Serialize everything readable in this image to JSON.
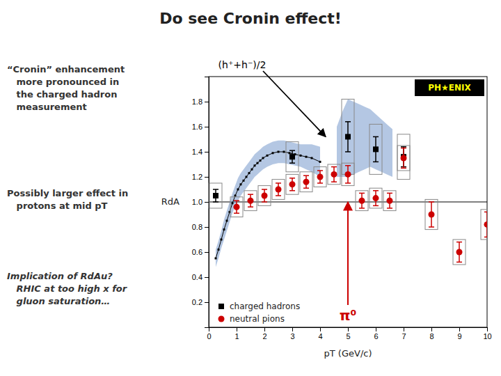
{
  "chart_data": {
    "type": "scatter",
    "title": "Do see Cronin effect!",
    "xlabel": "pT (GeV/c)",
    "ylabel": "RdA",
    "xlim": [
      0,
      10
    ],
    "ylim": [
      0,
      2.0
    ],
    "xticks": [
      0,
      1,
      2,
      3,
      4,
      5,
      6,
      7,
      8,
      9,
      10
    ],
    "yticks": [
      0.2,
      0.4,
      0.6,
      0.8,
      {
        "value": 1.0,
        "label": "1.0"
      },
      1.2,
      1.4,
      1.6,
      1.8
    ],
    "legend": "lower left",
    "reference_line": 1.0,
    "logo": "PH★ENIX",
    "notes": [
      "“Cronin” enhancement\n   more pronounced in\n   the charged hadron\n   measurement",
      "Possibly larger effect in\n   protons at mid pT",
      "Implication of RdAu?\n   RHIC at too high x for\n   gluon saturation…"
    ],
    "annotations": [
      {
        "text": "(h⁺+h⁻)/2",
        "x": 4.2,
        "y": 1.52,
        "color": "#000000"
      },
      {
        "text": "π⁰",
        "x": 5.0,
        "y": 1.0,
        "color": "#CC0000"
      }
    ],
    "series": [
      {
        "type": "band",
        "color": "#7799CC",
        "x": [
          0.25,
          0.35,
          0.45,
          0.55,
          0.65,
          0.75,
          0.85,
          0.95,
          1.05,
          1.15,
          1.25,
          1.35,
          1.45,
          1.55,
          1.65,
          1.75,
          1.85,
          1.95,
          2.1,
          2.3,
          2.5,
          2.7,
          2.9,
          3.1,
          3.3,
          3.5,
          3.7,
          4.0
        ],
        "lower": [
          0.48,
          0.55,
          0.63,
          0.7,
          0.77,
          0.84,
          0.91,
          0.97,
          1.01,
          1.05,
          1.08,
          1.11,
          1.14,
          1.17,
          1.2,
          1.22,
          1.24,
          1.26,
          1.28,
          1.3,
          1.31,
          1.31,
          1.3,
          1.29,
          1.28,
          1.26,
          1.24,
          1.2
        ],
        "upper": [
          0.62,
          0.69,
          0.77,
          0.86,
          0.93,
          1.0,
          1.07,
          1.13,
          1.19,
          1.23,
          1.26,
          1.29,
          1.32,
          1.35,
          1.38,
          1.4,
          1.42,
          1.44,
          1.46,
          1.48,
          1.49,
          1.49,
          1.48,
          1.47,
          1.46,
          1.46,
          1.46,
          1.44
        ]
      },
      {
        "type": "line",
        "color": "#000000",
        "marker": "square",
        "x": [
          0.25,
          0.35,
          0.45,
          0.55,
          0.65,
          0.75,
          0.85,
          0.95,
          1.05,
          1.15,
          1.25,
          1.35,
          1.45,
          1.55,
          1.65,
          1.75,
          1.85,
          1.95,
          2.1,
          2.3,
          2.5,
          2.7,
          2.9,
          3.1,
          3.3,
          3.5,
          3.7,
          4.0
        ],
        "values": [
          0.55,
          0.62,
          0.7,
          0.78,
          0.85,
          0.92,
          0.99,
          1.05,
          1.1,
          1.14,
          1.17,
          1.2,
          1.23,
          1.26,
          1.29,
          1.31,
          1.33,
          1.35,
          1.37,
          1.39,
          1.4,
          1.4,
          1.39,
          1.38,
          1.37,
          1.36,
          1.35,
          1.32
        ]
      },
      {
        "type": "band",
        "color": "#7799CC",
        "x": [
          4.6,
          4.8,
          5.0,
          5.2,
          5.4,
          5.6,
          5.8,
          6.0,
          6.2,
          6.4,
          6.6
        ],
        "lower": [
          1.2,
          1.2,
          1.2,
          1.22,
          1.24,
          1.26,
          1.28,
          1.26,
          1.24,
          1.22,
          1.2
        ],
        "upper": [
          1.6,
          1.72,
          1.82,
          1.8,
          1.78,
          1.76,
          1.74,
          1.7,
          1.66,
          1.62,
          1.58
        ]
      },
      {
        "name": "charged hadrons",
        "type": "scatter",
        "color": "#000000",
        "marker": "square",
        "x": [
          0.25,
          3.0,
          5.0,
          6.0,
          7.0
        ],
        "values": [
          1.05,
          1.36,
          1.52,
          1.42,
          1.36
        ],
        "error_minus": [
          0.05,
          0.05,
          0.12,
          0.1,
          0.08
        ],
        "error_plus": [
          0.05,
          0.05,
          0.12,
          0.1,
          0.08
        ],
        "sys_lower": [
          0.95,
          1.24,
          1.22,
          1.22,
          1.18
        ],
        "sys_upper": [
          1.15,
          1.48,
          1.82,
          1.62,
          1.54
        ]
      },
      {
        "name": "neutral pions",
        "type": "scatter",
        "color": "#CC0000",
        "marker": "circle",
        "x": [
          1.0,
          1.5,
          2.0,
          2.5,
          3.0,
          3.5,
          4.0,
          4.5,
          5.0,
          5.5,
          6.0,
          6.5,
          7.0,
          8.0,
          9.0,
          10.0
        ],
        "values": [
          0.96,
          1.01,
          1.05,
          1.1,
          1.14,
          1.16,
          1.2,
          1.22,
          1.22,
          1.01,
          1.03,
          1.01,
          1.35,
          0.9,
          0.6,
          0.82
        ],
        "error_minus": [
          0.05,
          0.05,
          0.05,
          0.05,
          0.05,
          0.05,
          0.05,
          0.06,
          0.07,
          0.06,
          0.06,
          0.06,
          0.08,
          0.1,
          0.08,
          0.1
        ],
        "error_plus": [
          0.05,
          0.05,
          0.05,
          0.05,
          0.05,
          0.05,
          0.05,
          0.06,
          0.07,
          0.06,
          0.06,
          0.06,
          0.08,
          0.1,
          0.08,
          0.1
        ],
        "sys_lower": [
          0.88,
          0.93,
          0.97,
          1.02,
          1.06,
          1.08,
          1.12,
          1.14,
          1.13,
          0.93,
          0.95,
          0.93,
          1.25,
          0.78,
          0.5,
          0.7
        ],
        "sys_upper": [
          1.04,
          1.09,
          1.13,
          1.18,
          1.22,
          1.24,
          1.28,
          1.3,
          1.31,
          1.09,
          1.11,
          1.09,
          1.45,
          1.02,
          0.7,
          0.94
        ]
      }
    ]
  }
}
